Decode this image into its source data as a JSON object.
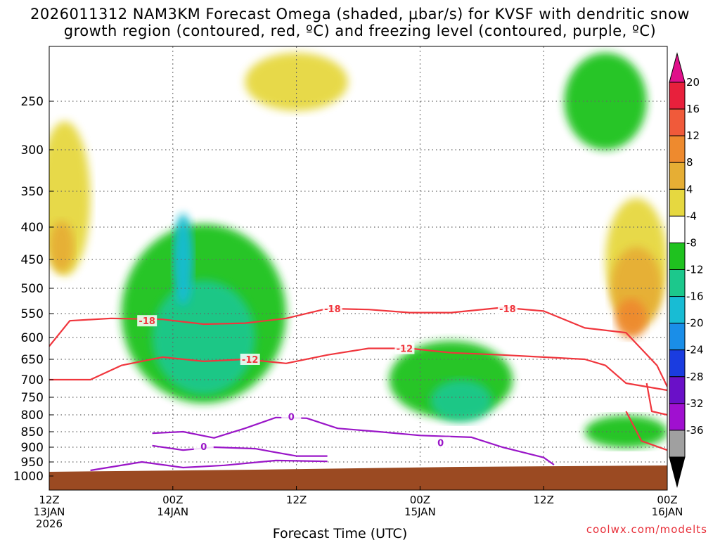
{
  "title_line1": "2026011312 NAM3KM Forecast Omega (shaded, μbar/s) for KVSF with dendritic snow",
  "title_line2": "growth region (contoured, red, ºC) and freezing level (contoured, purple, ºC)",
  "credit": "coolwx.com/modelts",
  "colors": {
    "ground": "#9b4a22",
    "red_contour": "#f0363d",
    "purple_contour": "#9a16c8",
    "grid": "#666666"
  },
  "chart_data": {
    "type": "heatmap",
    "title": "2026011312 NAM3KM Forecast Omega (shaded, μbar/s) for KVSF",
    "xlabel": "Forecast Time (UTC)",
    "ylabel": "",
    "x_range_hours": [
      0,
      60
    ],
    "y_range_hpa": [
      200,
      1025
    ],
    "y_ticks": [
      250,
      300,
      350,
      400,
      450,
      500,
      550,
      600,
      650,
      700,
      750,
      800,
      850,
      900,
      950,
      1000
    ],
    "x_ticks": [
      {
        "hour": 0,
        "line1": "12Z",
        "line2": "13JAN",
        "line3": "2026"
      },
      {
        "hour": 12,
        "line1": "00Z",
        "line2": "14JAN",
        "line3": ""
      },
      {
        "hour": 24,
        "line1": "12Z",
        "line2": "",
        "line3": ""
      },
      {
        "hour": 36,
        "line1": "00Z",
        "line2": "15JAN",
        "line3": ""
      },
      {
        "hour": 48,
        "line1": "12Z",
        "line2": "",
        "line3": ""
      },
      {
        "hour": 60,
        "line1": "00Z",
        "line2": "16JAN",
        "line3": ""
      }
    ],
    "colorbar": {
      "labels": [
        "20",
        "16",
        "12",
        "8",
        "4",
        "-4",
        "-8",
        "-12",
        "-16",
        "-20",
        "-24",
        "-28",
        "-32",
        "-36"
      ],
      "colors": [
        "#e8203c",
        "#f05a3a",
        "#ee8a2e",
        "#e6ae34",
        "#e6d840",
        "#ffffff",
        "#1fc21f",
        "#1cc88c",
        "#18bcd4",
        "#1a8ee8",
        "#1a3ce0",
        "#6a10c8",
        "#a010d0",
        "#a0a0a0"
      ],
      "top_arrow_color": "#e0108a",
      "bottom_arrow_color": "#000000"
    },
    "omega_regions": [
      {
        "level": "4",
        "color": "#e6d840",
        "hour": 1.5,
        "hpa": 360,
        "spread_h": 2.5,
        "spread_p": 200
      },
      {
        "level": "8",
        "color": "#e6ae34",
        "hour": 1.2,
        "hpa": 430,
        "spread_h": 1.2,
        "spread_p": 80
      },
      {
        "level": "4",
        "color": "#e6d840",
        "hour": 24,
        "hpa": 230,
        "spread_h": 5,
        "spread_p": 60
      },
      {
        "level": "-8",
        "color": "#1fc21f",
        "hour": 15,
        "hpa": 550,
        "spread_h": 8,
        "spread_p": 350
      },
      {
        "level": "-12",
        "color": "#1cc88c",
        "hour": 15,
        "hpa": 600,
        "spread_h": 5,
        "spread_p": 250
      },
      {
        "level": "-16",
        "color": "#18bcd4",
        "hour": 13,
        "hpa": 450,
        "spread_h": 1,
        "spread_p": 150
      },
      {
        "level": "-8",
        "color": "#1fc21f",
        "hour": 39,
        "hpa": 700,
        "spread_h": 6,
        "spread_p": 200
      },
      {
        "level": "-12",
        "color": "#1cc88c",
        "hour": 40,
        "hpa": 760,
        "spread_h": 3,
        "spread_p": 120
      },
      {
        "level": "-8",
        "color": "#1fc21f",
        "hour": 54,
        "hpa": 250,
        "spread_h": 4,
        "spread_p": 100
      },
      {
        "level": "-8",
        "color": "#1fc21f",
        "hour": 56,
        "hpa": 850,
        "spread_h": 4,
        "spread_p": 100
      },
      {
        "level": "4",
        "color": "#e6d840",
        "hour": 57,
        "hpa": 450,
        "spread_h": 3,
        "spread_p": 200
      },
      {
        "level": "8",
        "color": "#e6ae34",
        "hour": 57,
        "hpa": 500,
        "spread_h": 2.5,
        "spread_p": 150
      },
      {
        "level": "12",
        "color": "#ee8a2e",
        "hour": 56.5,
        "hpa": 560,
        "spread_h": 1.5,
        "spread_p": 80
      }
    ],
    "red_contours": [
      {
        "label": "-18",
        "points": [
          [
            0,
            620
          ],
          [
            2,
            565
          ],
          [
            6,
            560
          ],
          [
            11,
            562
          ],
          [
            15,
            572
          ],
          [
            19,
            570
          ],
          [
            23,
            560
          ],
          [
            27,
            540
          ],
          [
            31,
            542
          ],
          [
            35,
            548
          ],
          [
            39,
            548
          ],
          [
            44,
            538
          ],
          [
            48,
            545
          ],
          [
            52,
            580
          ],
          [
            56,
            590
          ],
          [
            59,
            665
          ],
          [
            60,
            720
          ]
        ]
      },
      {
        "label": "-12",
        "points": [
          [
            0,
            700
          ],
          [
            4,
            700
          ],
          [
            7,
            665
          ],
          [
            11,
            645
          ],
          [
            15,
            655
          ],
          [
            19,
            650
          ],
          [
            23,
            660
          ],
          [
            27,
            640
          ],
          [
            31,
            625
          ],
          [
            35,
            625
          ],
          [
            39,
            635
          ],
          [
            44,
            640
          ],
          [
            48,
            645
          ],
          [
            52,
            650
          ],
          [
            54,
            665
          ],
          [
            56,
            710
          ],
          [
            60,
            730
          ]
        ]
      },
      {
        "label": "",
        "points": [
          [
            58,
            710
          ],
          [
            58.5,
            790
          ],
          [
            60,
            800
          ]
        ]
      },
      {
        "label": "",
        "points": [
          [
            56,
            790
          ],
          [
            57.5,
            880
          ],
          [
            60,
            910
          ]
        ]
      }
    ],
    "red_label_positions": [
      {
        "label": "-18",
        "hour": 9.5,
        "hpa": 565
      },
      {
        "label": "-12",
        "hour": 19.5,
        "hpa": 650
      },
      {
        "label": "-18",
        "hour": 27.5,
        "hpa": 540
      },
      {
        "label": "-12",
        "hour": 34.5,
        "hpa": 625
      },
      {
        "label": "-18",
        "hour": 44.5,
        "hpa": 540
      }
    ],
    "purple_contours": [
      {
        "label": "0",
        "points": [
          [
            10,
            855
          ],
          [
            13,
            850
          ],
          [
            16,
            870
          ],
          [
            19,
            840
          ],
          [
            22,
            808
          ],
          [
            25,
            810
          ],
          [
            28,
            840
          ],
          [
            32,
            850
          ],
          [
            36,
            862
          ],
          [
            41,
            868
          ],
          [
            44,
            900
          ],
          [
            48,
            935
          ],
          [
            49,
            960
          ]
        ]
      },
      {
        "label": "0",
        "points": [
          [
            10,
            895
          ],
          [
            13,
            910
          ],
          [
            16,
            900
          ],
          [
            20,
            905
          ],
          [
            24,
            930
          ],
          [
            27,
            930
          ]
        ]
      },
      {
        "label": "",
        "points": [
          [
            4,
            980
          ],
          [
            9,
            950
          ],
          [
            13,
            970
          ],
          [
            17,
            962
          ],
          [
            22,
            945
          ],
          [
            27,
            948
          ]
        ]
      }
    ],
    "purple_label_positions": [
      {
        "label": "0",
        "hour": 23.5,
        "hpa": 805
      },
      {
        "label": "0",
        "hour": 15,
        "hpa": 898
      },
      {
        "label": "0",
        "hour": 38,
        "hpa": 885
      }
    ]
  }
}
